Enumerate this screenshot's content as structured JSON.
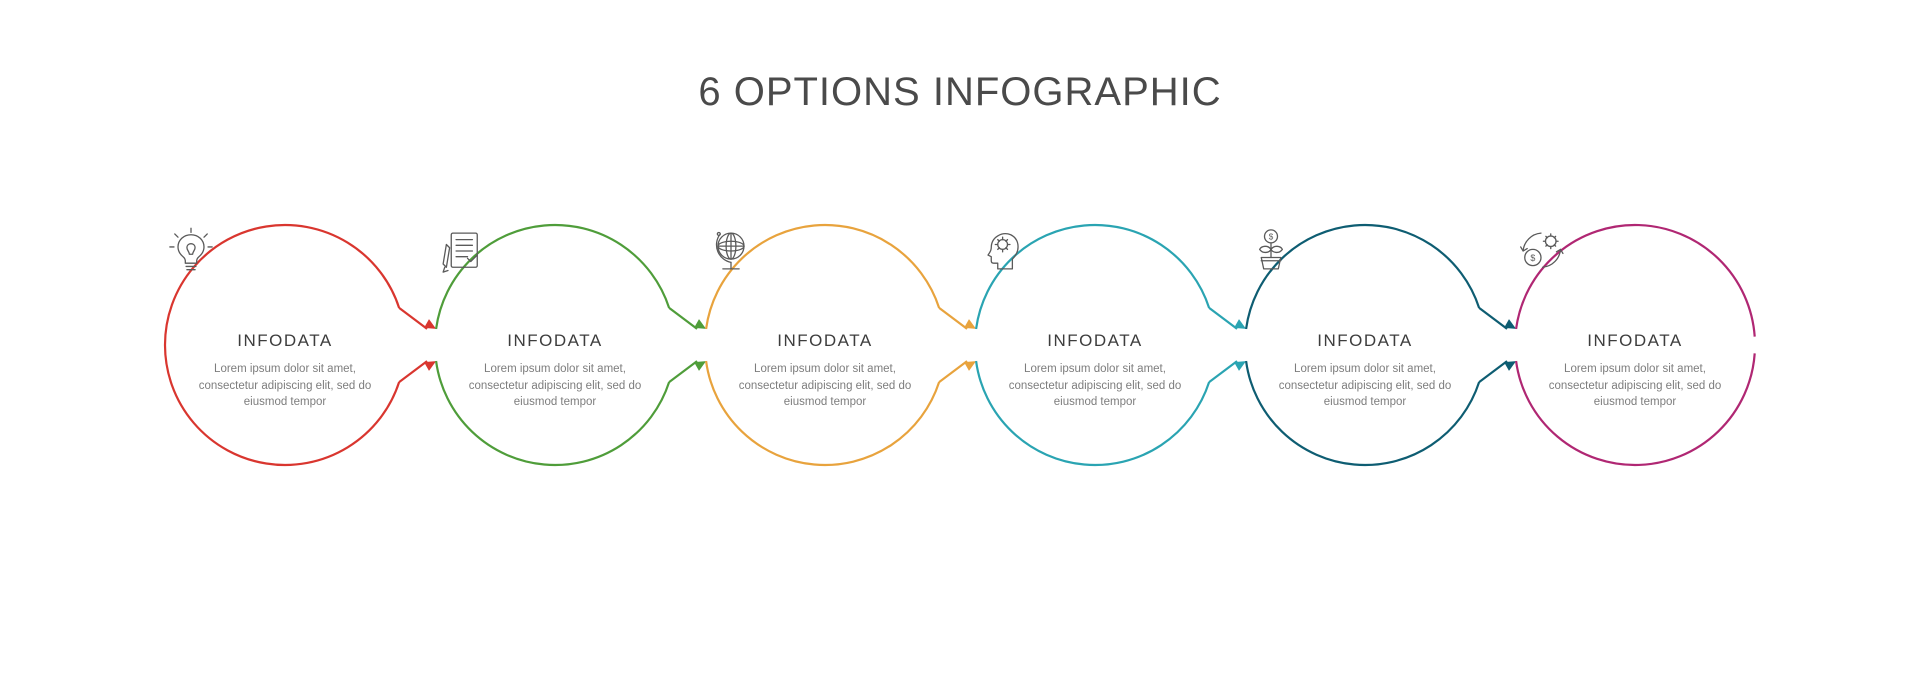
{
  "type": "infographic",
  "title": "6 OPTIONS INFOGRAPHIC",
  "background_color": "#ffffff",
  "title_color": "#4a4a4a",
  "title_fontsize": 40,
  "heading_color": "#3d3d3d",
  "body_color": "#7d7d7d",
  "icon_stroke": "#5a5a5a",
  "circle_stroke_width": 2.2,
  "arrow_stroke_width": 2.2,
  "circle_radius": 120,
  "circle_pitch": 270,
  "stage_width": 1620,
  "stage_height": 320,
  "arrow_gap_deg": 14,
  "pair_gap_deg": 8,
  "options": [
    {
      "icon": "lightbulb-icon",
      "color": "#d9362f",
      "heading": "INFODATA",
      "body": "Lorem ipsum dolor sit amet, consectetur adipiscing elit, sed do eiusmod tempor"
    },
    {
      "icon": "checklist-icon",
      "color": "#4f9d3a",
      "heading": "INFODATA",
      "body": "Lorem ipsum dolor sit amet, consectetur adipiscing elit, sed do eiusmod tempor"
    },
    {
      "icon": "globe-icon",
      "color": "#e8a33d",
      "heading": "INFODATA",
      "body": "Lorem ipsum dolor sit amet, consectetur adipiscing elit, sed do eiusmod tempor"
    },
    {
      "icon": "head-gear-icon",
      "color": "#2aa4b2",
      "heading": "INFODATA",
      "body": "Lorem ipsum dolor sit amet, consectetur adipiscing elit, sed do eiusmod tempor"
    },
    {
      "icon": "money-plant-icon",
      "color": "#0e5d72",
      "heading": "INFODATA",
      "body": "Lorem ipsum dolor sit amet, consectetur adipiscing elit, sed do eiusmod tempor"
    },
    {
      "icon": "money-cycle-icon",
      "color": "#b02773",
      "heading": "INFODATA",
      "body": "Lorem ipsum dolor sit amet, consectetur adipiscing elit, sed do eiusmod tempor"
    }
  ]
}
